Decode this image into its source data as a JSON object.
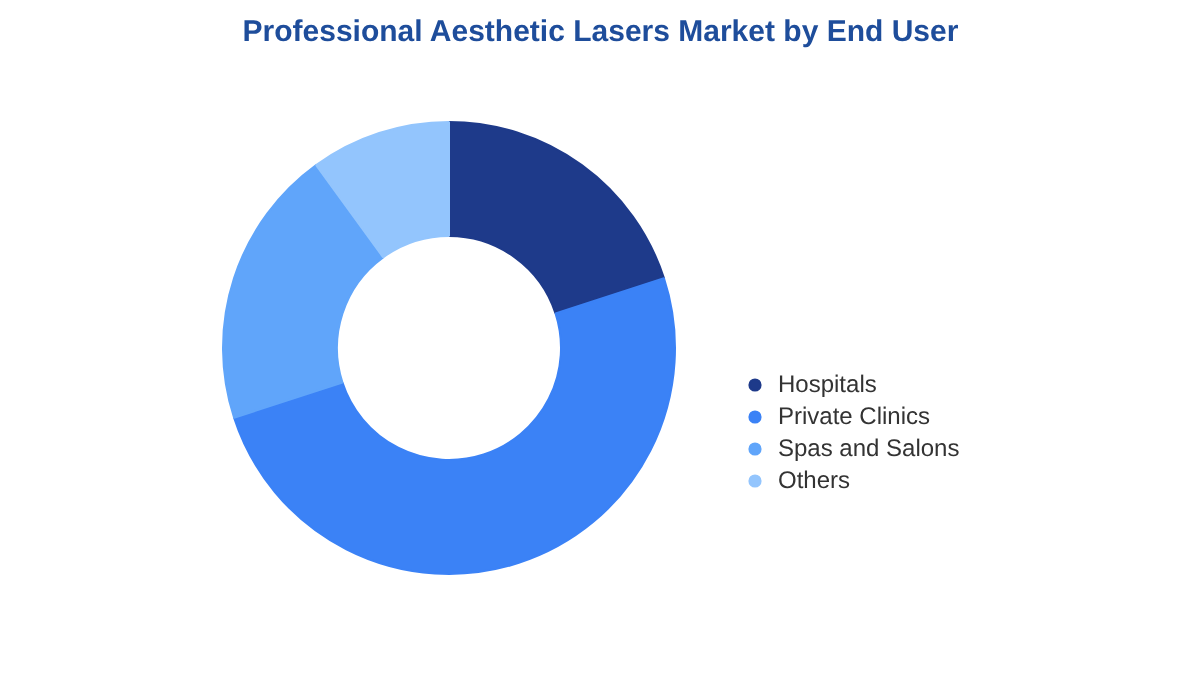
{
  "chart_data": {
    "type": "donut",
    "title": "Professional Aesthetic Lasers Market by End User",
    "categories": [
      "Hospitals",
      "Private Clinics",
      "Spas and Salons",
      "Others"
    ],
    "values": [
      20,
      50,
      20,
      10
    ],
    "colors": [
      "#1e3a8a",
      "#3b82f6",
      "#60a5fa",
      "#93c5fd"
    ],
    "legend": "right"
  }
}
